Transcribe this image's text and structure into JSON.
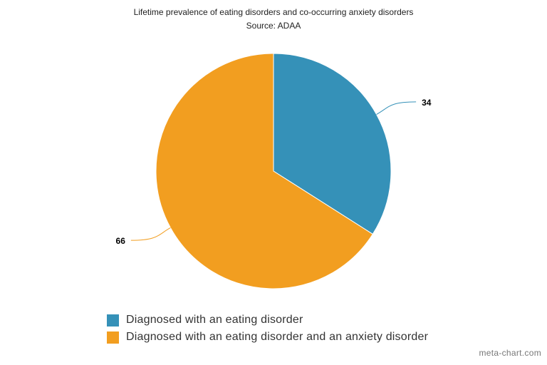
{
  "chart_data": {
    "type": "pie",
    "title": "Lifetime prevalence of eating disorders and co-occurring anxiety disorders",
    "subtitle": "Source: ADAA",
    "categories": [
      "Diagnosed with an eating disorder",
      "Diagnosed with an eating disorder and an anxiety disorder"
    ],
    "values": [
      34,
      66
    ],
    "colors": [
      "#3591b8",
      "#f29e20"
    ],
    "data_labels": [
      "34",
      "66"
    ],
    "legend_placement": "bottom-left"
  },
  "watermark": "meta-chart.com"
}
